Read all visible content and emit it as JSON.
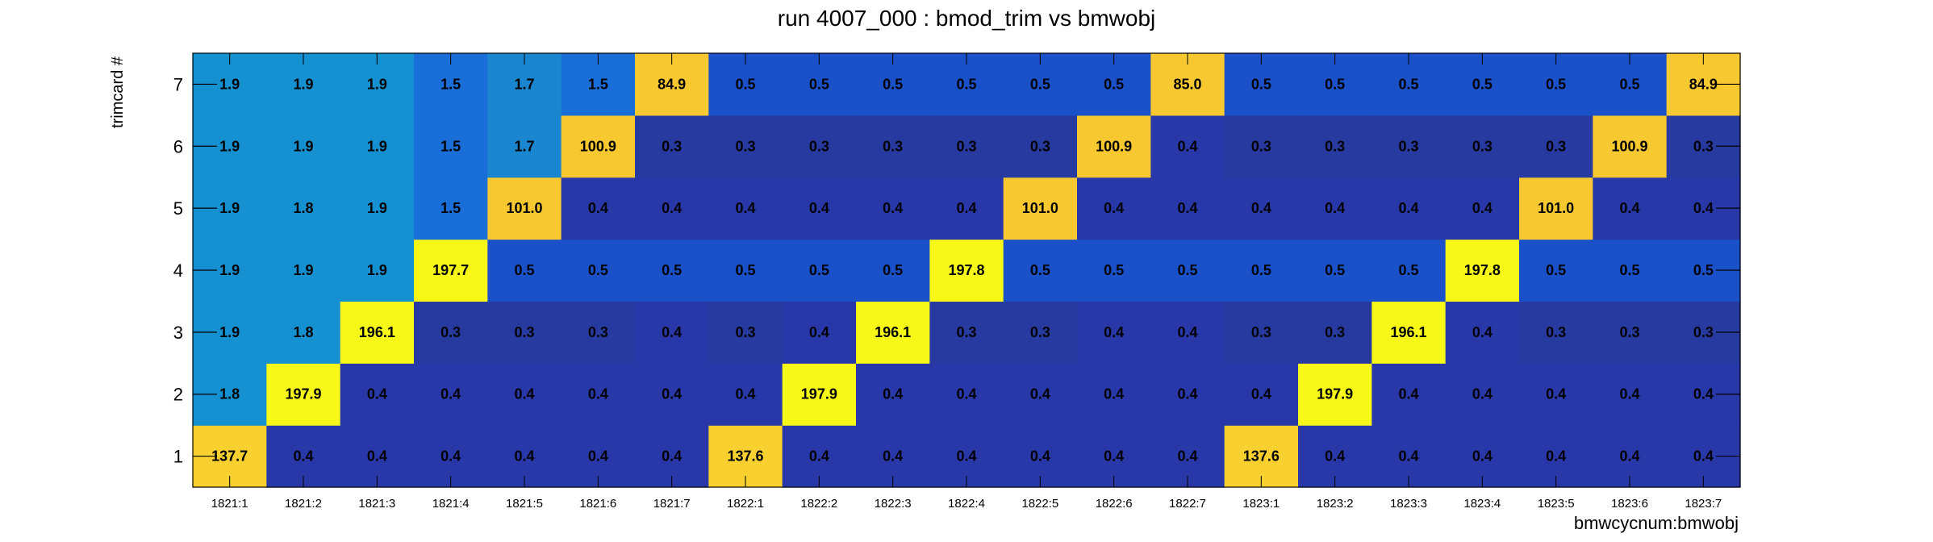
{
  "chart_data": {
    "type": "heatmap",
    "title": "run 4007_000 : bmod_trim vs bmwobj",
    "xlabel": "bmwcycnum:bmwobj",
    "ylabel": "trimcard #",
    "x_categories": [
      "1821:1",
      "1821:2",
      "1821:3",
      "1821:4",
      "1821:5",
      "1821:6",
      "1821:7",
      "1822:1",
      "1822:2",
      "1822:3",
      "1822:4",
      "1822:5",
      "1822:6",
      "1822:7",
      "1823:1",
      "1823:2",
      "1823:3",
      "1823:4",
      "1823:5",
      "1823:6",
      "1823:7"
    ],
    "y_categories": [
      "1",
      "2",
      "3",
      "4",
      "5",
      "6",
      "7"
    ],
    "grid": false,
    "values": [
      [
        "137.7",
        "0.4",
        "0.4",
        "0.4",
        "0.4",
        "0.4",
        "0.4",
        "137.6",
        "0.4",
        "0.4",
        "0.4",
        "0.4",
        "0.4",
        "0.4",
        "137.6",
        "0.4",
        "0.4",
        "0.4",
        "0.4",
        "0.4",
        "0.4"
      ],
      [
        "1.8",
        "197.9",
        "0.4",
        "0.4",
        "0.4",
        "0.4",
        "0.4",
        "0.4",
        "197.9",
        "0.4",
        "0.4",
        "0.4",
        "0.4",
        "0.4",
        "0.4",
        "197.9",
        "0.4",
        "0.4",
        "0.4",
        "0.4",
        "0.4"
      ],
      [
        "1.9",
        "1.8",
        "196.1",
        "0.3",
        "0.3",
        "0.3",
        "0.4",
        "0.3",
        "0.4",
        "196.1",
        "0.3",
        "0.3",
        "0.4",
        "0.4",
        "0.3",
        "0.3",
        "196.1",
        "0.4",
        "0.3",
        "0.3",
        "0.3"
      ],
      [
        "1.9",
        "1.9",
        "1.9",
        "197.7",
        "0.5",
        "0.5",
        "0.5",
        "0.5",
        "0.5",
        "0.5",
        "197.8",
        "0.5",
        "0.5",
        "0.5",
        "0.5",
        "0.5",
        "0.5",
        "197.8",
        "0.5",
        "0.5",
        "0.5"
      ],
      [
        "1.9",
        "1.8",
        "1.9",
        "1.5",
        "101.0",
        "0.4",
        "0.4",
        "0.4",
        "0.4",
        "0.4",
        "0.4",
        "101.0",
        "0.4",
        "0.4",
        "0.4",
        "0.4",
        "0.4",
        "0.4",
        "101.0",
        "0.4",
        "0.4"
      ],
      [
        "1.9",
        "1.9",
        "1.9",
        "1.5",
        "1.7",
        "100.9",
        "0.3",
        "0.3",
        "0.3",
        "0.3",
        "0.3",
        "0.3",
        "100.9",
        "0.4",
        "0.3",
        "0.3",
        "0.3",
        "0.3",
        "0.3",
        "100.9",
        "0.3"
      ],
      [
        "1.9",
        "1.9",
        "1.9",
        "1.5",
        "1.7",
        "1.5",
        "84.9",
        "0.5",
        "0.5",
        "0.5",
        "0.5",
        "0.5",
        "0.5",
        "85.0",
        "0.5",
        "0.5",
        "0.5",
        "0.5",
        "0.5",
        "0.5",
        "84.9"
      ]
    ],
    "color_scale": [
      {
        "value": 0.3,
        "color": "#263aa0"
      },
      {
        "value": 0.4,
        "color": "#2838a8"
      },
      {
        "value": 0.5,
        "color": "#1a50c8"
      },
      {
        "value": 1.5,
        "color": "#1a6ed8"
      },
      {
        "value": 1.7,
        "color": "#1a86cf"
      },
      {
        "value": 1.8,
        "color": "#1590d0"
      },
      {
        "value": 1.9,
        "color": "#1590d0"
      },
      {
        "value": 84.9,
        "color": "#f8c830"
      },
      {
        "value": 85.0,
        "color": "#f8c830"
      },
      {
        "value": 100.9,
        "color": "#f8c830"
      },
      {
        "value": 101.0,
        "color": "#f8c830"
      },
      {
        "value": 137.6,
        "color": "#f8d030"
      },
      {
        "value": 137.7,
        "color": "#f8d030"
      },
      {
        "value": 196.1,
        "color": "#f8f818"
      },
      {
        "value": 197.7,
        "color": "#f8f818"
      },
      {
        "value": 197.8,
        "color": "#f8f818"
      },
      {
        "value": 197.9,
        "color": "#f8f818"
      }
    ]
  }
}
